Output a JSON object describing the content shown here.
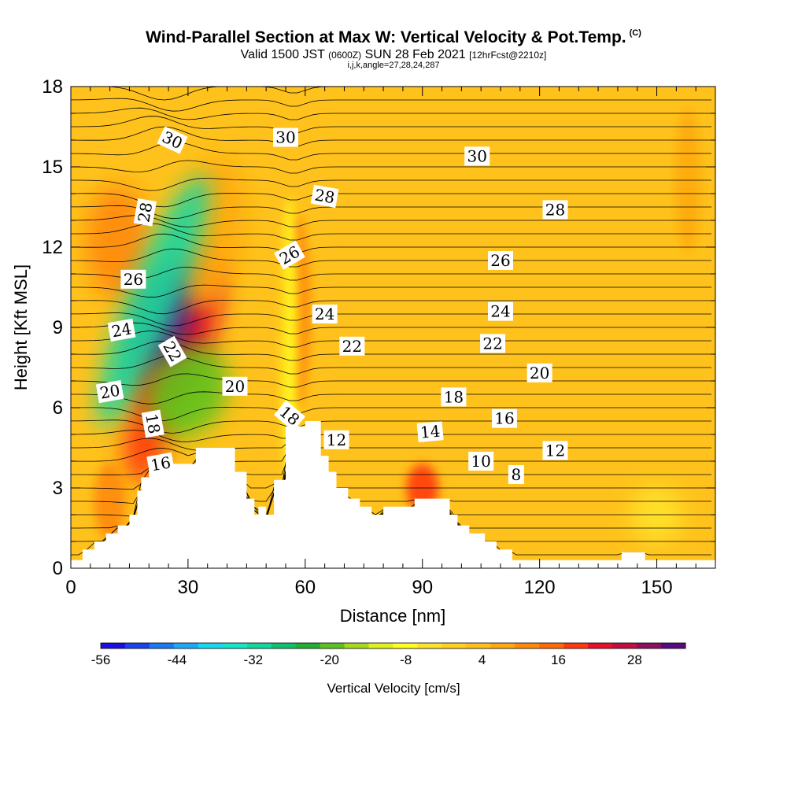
{
  "header": {
    "title": "Wind-Parallel Section at Max W: Vertical Velocity & Pot.Temp.",
    "copyright": "(C)",
    "valid_main": "Valid 1500 JST",
    "valid_z": "(0600Z)",
    "valid_date": "SUN 28 Feb 2021",
    "valid_fcst": "[12hrFcst@2210z]",
    "ijk": "i,j,k,angle=27,28,24,287"
  },
  "chart_data": {
    "type": "heatmap",
    "xlabel": "Distance [nm]",
    "ylabel": "Height [Kft MSL]",
    "xlim": [
      0,
      165
    ],
    "ylim": [
      0,
      18
    ],
    "x_ticks": [
      0,
      30,
      60,
      90,
      120,
      150
    ],
    "y_ticks": [
      0,
      3,
      6,
      9,
      12,
      15,
      18
    ],
    "colorbar": {
      "label": "Vertical Velocity [cm/s]",
      "ticks": [
        -56,
        -44,
        -32,
        -20,
        -8,
        4,
        16,
        28
      ],
      "min": -56,
      "max": 36,
      "colors": [
        "#1a10e0",
        "#1a44ee",
        "#1e78f5",
        "#1ea8f8",
        "#18d8f0",
        "#12e8c8",
        "#12d8a0",
        "#10c070",
        "#22b032",
        "#5ec21e",
        "#a8d820",
        "#e0f020",
        "#ffff20",
        "#ffe22a",
        "#ffd21e",
        "#ffc018",
        "#ffaa10",
        "#ff8a0c",
        "#ff6a08",
        "#ff3a10",
        "#e8102a",
        "#c01040",
        "#8c1060",
        "#5a0a80"
      ]
    },
    "terrain": [
      [
        0,
        0.3
      ],
      [
        3,
        0.3
      ],
      [
        3,
        0.7
      ],
      [
        6,
        0.7
      ],
      [
        6,
        1
      ],
      [
        9,
        1
      ],
      [
        9,
        1.3
      ],
      [
        12,
        1.3
      ],
      [
        12,
        1.6
      ],
      [
        15,
        1.6
      ],
      [
        15,
        2.0
      ],
      [
        17,
        2.0
      ],
      [
        17,
        2.9
      ],
      [
        18,
        2.9
      ],
      [
        18,
        3.4
      ],
      [
        20,
        3.4
      ],
      [
        20,
        3.9
      ],
      [
        23,
        3.9
      ],
      [
        23,
        3.9
      ],
      [
        32,
        3.9
      ],
      [
        32,
        4.5
      ],
      [
        42,
        4.5
      ],
      [
        42,
        3.6
      ],
      [
        45,
        3.6
      ],
      [
        45,
        2.6
      ],
      [
        47,
        2.6
      ],
      [
        47,
        2.0
      ],
      [
        48,
        2.0
      ],
      [
        48,
        2.3
      ],
      [
        50,
        2.3
      ],
      [
        50,
        2.0
      ],
      [
        52,
        2.0
      ],
      [
        52,
        3.3
      ],
      [
        55,
        3.3
      ],
      [
        55,
        5.3
      ],
      [
        60,
        5.3
      ],
      [
        60,
        5.5
      ],
      [
        64,
        5.5
      ],
      [
        64,
        4.2
      ],
      [
        66,
        4.2
      ],
      [
        66,
        3.6
      ],
      [
        68,
        3.6
      ],
      [
        68,
        3.0
      ],
      [
        71,
        3.0
      ],
      [
        71,
        2.6
      ],
      [
        74,
        2.6
      ],
      [
        74,
        2.3
      ],
      [
        77,
        2.3
      ],
      [
        77,
        2.0
      ],
      [
        80,
        2.0
      ],
      [
        80,
        2.3
      ],
      [
        88,
        2.3
      ],
      [
        88,
        2.6
      ],
      [
        97,
        2.6
      ],
      [
        97,
        2.0
      ],
      [
        99,
        2.0
      ],
      [
        99,
        1.6
      ],
      [
        102,
        1.6
      ],
      [
        102,
        1.3
      ],
      [
        106,
        1.3
      ],
      [
        106,
        1.0
      ],
      [
        109,
        1.0
      ],
      [
        109,
        0.7
      ],
      [
        113,
        0.7
      ],
      [
        113,
        0.3
      ],
      [
        141,
        0.3
      ],
      [
        141,
        0.6
      ],
      [
        147,
        0.6
      ],
      [
        147,
        0.3
      ],
      [
        165,
        0.3
      ]
    ],
    "velocity_blobs": [
      {
        "x": 27,
        "y": 9.0,
        "w": 0.06,
        "h": 0.17,
        "rot": 20,
        "value": 24
      },
      {
        "x": 25,
        "y": 9.2,
        "w": 0.035,
        "h": 0.12,
        "rot": 18,
        "value": 34
      },
      {
        "x": 20,
        "y": 5.3,
        "w": 0.035,
        "h": 0.12,
        "rot": 12,
        "value": 18
      },
      {
        "x": 12,
        "y": 12.2,
        "w": 0.05,
        "h": 0.12,
        "rot": 0,
        "value": 12
      },
      {
        "x": 36,
        "y": 12.5,
        "w": 0.05,
        "h": 0.16,
        "rot": 8,
        "value": 8
      },
      {
        "x": 58,
        "y": 9.6,
        "w": 0.02,
        "h": 0.2,
        "rot": 0,
        "value": 12
      },
      {
        "x": 90,
        "y": 3.0,
        "w": 0.025,
        "h": 0.05,
        "rot": 0,
        "value": 20
      },
      {
        "x": 10,
        "y": 2.5,
        "w": 0.025,
        "h": 0.08,
        "rot": 0,
        "value": 12
      },
      {
        "x": 21,
        "y": 10.0,
        "w": 0.04,
        "h": 0.28,
        "rot": 22,
        "value": -30
      },
      {
        "x": 30,
        "y": 6.6,
        "w": 0.06,
        "h": 0.1,
        "rot": 30,
        "value": -18
      },
      {
        "x": 56,
        "y": 8.5,
        "w": 0.012,
        "h": 0.3,
        "rot": 0,
        "value": -8
      },
      {
        "x": 150,
        "y": 2.0,
        "w": 0.04,
        "h": 0.06,
        "rot": 0,
        "value": -6
      },
      {
        "x": 158,
        "y": 14.5,
        "w": 0.02,
        "h": 0.15,
        "rot": 0,
        "value": 8
      }
    ],
    "isentrope_labels": [
      {
        "value": "30",
        "x": 26,
        "y": 16.0,
        "rot": 25
      },
      {
        "value": "30",
        "x": 55,
        "y": 16.1,
        "rot": 0
      },
      {
        "value": "30",
        "x": 104,
        "y": 15.4,
        "rot": 0
      },
      {
        "value": "28",
        "x": 19,
        "y": 13.3,
        "rot": -80
      },
      {
        "value": "28",
        "x": 65,
        "y": 13.9,
        "rot": 10
      },
      {
        "value": "28",
        "x": 124,
        "y": 13.4,
        "rot": 0
      },
      {
        "value": "26",
        "x": 16,
        "y": 10.8,
        "rot": 0
      },
      {
        "value": "26",
        "x": 56,
        "y": 11.7,
        "rot": -30
      },
      {
        "value": "26",
        "x": 110,
        "y": 11.5,
        "rot": 0
      },
      {
        "value": "24",
        "x": 13,
        "y": 8.9,
        "rot": -10
      },
      {
        "value": "24",
        "x": 65,
        "y": 9.5,
        "rot": 0
      },
      {
        "value": "24",
        "x": 110,
        "y": 9.6,
        "rot": 0
      },
      {
        "value": "22",
        "x": 26,
        "y": 8.1,
        "rot": 60
      },
      {
        "value": "22",
        "x": 72,
        "y": 8.3,
        "rot": 0
      },
      {
        "value": "22",
        "x": 108,
        "y": 8.4,
        "rot": 0
      },
      {
        "value": "20",
        "x": 10,
        "y": 6.6,
        "rot": -10
      },
      {
        "value": "20",
        "x": 42,
        "y": 6.8,
        "rot": 0
      },
      {
        "value": "20",
        "x": 120,
        "y": 7.3,
        "rot": 0
      },
      {
        "value": "18",
        "x": 21,
        "y": 5.4,
        "rot": 80
      },
      {
        "value": "18",
        "x": 56,
        "y": 5.7,
        "rot": 40
      },
      {
        "value": "18",
        "x": 98,
        "y": 6.4,
        "rot": 0
      },
      {
        "value": "16",
        "x": 23,
        "y": 3.9,
        "rot": -10
      },
      {
        "value": "16",
        "x": 111,
        "y": 5.6,
        "rot": 0
      },
      {
        "value": "14",
        "x": 92,
        "y": 5.1,
        "rot": -5
      },
      {
        "value": "12",
        "x": 68,
        "y": 4.8,
        "rot": 0
      },
      {
        "value": "12",
        "x": 124,
        "y": 4.4,
        "rot": 0
      },
      {
        "value": "10",
        "x": 105,
        "y": 4.0,
        "rot": 0
      },
      {
        "value": "8",
        "x": 114,
        "y": 3.5,
        "rot": 0
      }
    ]
  }
}
